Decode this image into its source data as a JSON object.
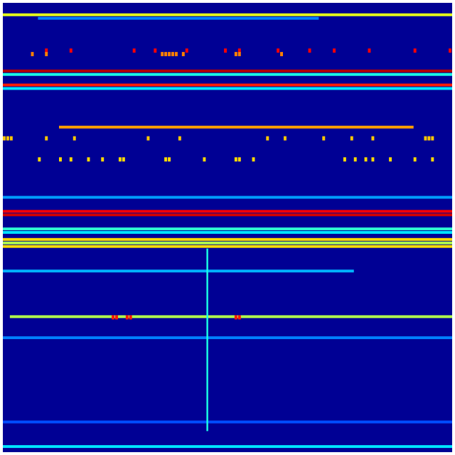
{
  "chart_data": {
    "type": "heatmap",
    "colormap": "jet",
    "background_value": 0.02,
    "grid": false,
    "axes_visible": false,
    "rows": 128,
    "cols": 128,
    "bands": [
      {
        "row": 3,
        "value": 0.6,
        "from_col": 0,
        "to_col": 128
      },
      {
        "row": 4,
        "value": 0.25,
        "from_col": 10,
        "to_col": 90
      },
      {
        "row": 19,
        "value": 0.95,
        "from_col": 0,
        "to_col": 128
      },
      {
        "row": 20,
        "value": 0.4,
        "from_col": 0,
        "to_col": 128
      },
      {
        "row": 23,
        "value": 0.85,
        "from_col": 0,
        "to_col": 128
      },
      {
        "row": 24,
        "value": 0.35,
        "from_col": 0,
        "to_col": 128
      },
      {
        "row": 35,
        "value": 0.72,
        "from_col": 16,
        "to_col": 117
      },
      {
        "row": 55,
        "value": 0.28,
        "from_col": 0,
        "to_col": 128
      },
      {
        "row": 59,
        "value": 0.88,
        "from_col": 0,
        "to_col": 128
      },
      {
        "row": 60,
        "value": 0.92,
        "from_col": 0,
        "to_col": 128
      },
      {
        "row": 64,
        "value": 0.42,
        "from_col": 0,
        "to_col": 128
      },
      {
        "row": 65,
        "value": 0.35,
        "from_col": 0,
        "to_col": 128
      },
      {
        "row": 67,
        "value": 0.66,
        "from_col": 0,
        "to_col": 128
      },
      {
        "row": 68,
        "value": 0.55,
        "from_col": 0,
        "to_col": 128
      },
      {
        "row": 69,
        "value": 0.66,
        "from_col": 0,
        "to_col": 128
      },
      {
        "row": 76,
        "value": 0.3,
        "from_col": 0,
        "to_col": 100
      },
      {
        "row": 89,
        "value": 0.55,
        "from_col": 2,
        "to_col": 128
      },
      {
        "row": 95,
        "value": 0.25,
        "from_col": 0,
        "to_col": 128
      },
      {
        "row": 119,
        "value": 0.2,
        "from_col": 0,
        "to_col": 128
      },
      {
        "row": 126,
        "value": 0.35,
        "from_col": 0,
        "to_col": 128
      }
    ],
    "spots": [
      {
        "row": 13,
        "value": 0.88,
        "cols": [
          12,
          19,
          37,
          43,
          52,
          63,
          67,
          78,
          87,
          94,
          104,
          117,
          127
        ]
      },
      {
        "row": 14,
        "value": 0.75,
        "cols": [
          8,
          12,
          45,
          46,
          47,
          48,
          49,
          51,
          66,
          67,
          79
        ]
      },
      {
        "row": 38,
        "value": 0.68,
        "cols": [
          0,
          1,
          2,
          12,
          20,
          41,
          50,
          75,
          80,
          91,
          99,
          105,
          120,
          121,
          122
        ]
      },
      {
        "row": 44,
        "value": 0.66,
        "cols": [
          10,
          16,
          19,
          24,
          28,
          33,
          34,
          46,
          47,
          57,
          66,
          67,
          71,
          97,
          100,
          103,
          105,
          110,
          117,
          122
        ]
      },
      {
        "row": 89,
        "value": 0.85,
        "cols": [
          31,
          32,
          35,
          36,
          66,
          67
        ]
      }
    ],
    "streaks": [
      {
        "col": 58,
        "value": 0.4,
        "from_row": 70,
        "to_row": 122
      }
    ]
  }
}
